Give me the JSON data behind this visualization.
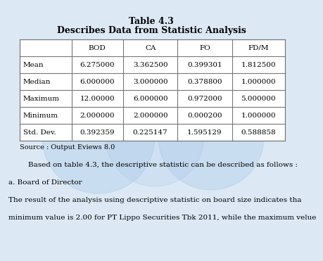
{
  "title": "Table 4.3",
  "subtitle": "Describes Data from Statistic Analysis",
  "col_headers": [
    "",
    "BOD",
    "CA",
    "FO",
    "FD/M"
  ],
  "rows": [
    [
      "Mean",
      "6.275000",
      "3.362500",
      "0.399301",
      "1.812500"
    ],
    [
      "Median",
      "6.000000",
      "3.000000",
      "0.378800",
      "1.000000"
    ],
    [
      "Maximum",
      "12.00000",
      "6.000000",
      "0.972000",
      "5.000000"
    ],
    [
      "Minimum",
      "2.000000",
      "2.000000",
      "0.000200",
      "1.000000"
    ],
    [
      "Std. Dev.",
      "0.392359",
      "0.225147",
      "1.595129",
      "0.588858"
    ]
  ],
  "source_text": "Source : Output Eviews 8.0",
  "body_text_1": "Based on table 4.3, the descriptive statistic can be described as follows :",
  "body_text_2": "a. Board of Director",
  "body_text_3": "The result of the analysis using descriptive statistic on board size indicates tha",
  "body_text_4": "minimum value is 2.00 for PT Lippo Securities Tbk 2011, while the maximum velue",
  "bg_color": "#dce9f5",
  "cell_bg": "#ffffff",
  "border_color": "#777777",
  "title_fontsize": 9,
  "subtitle_fontsize": 9,
  "table_fontsize": 7.5,
  "source_fontsize": 7,
  "body_fontsize": 7.5
}
